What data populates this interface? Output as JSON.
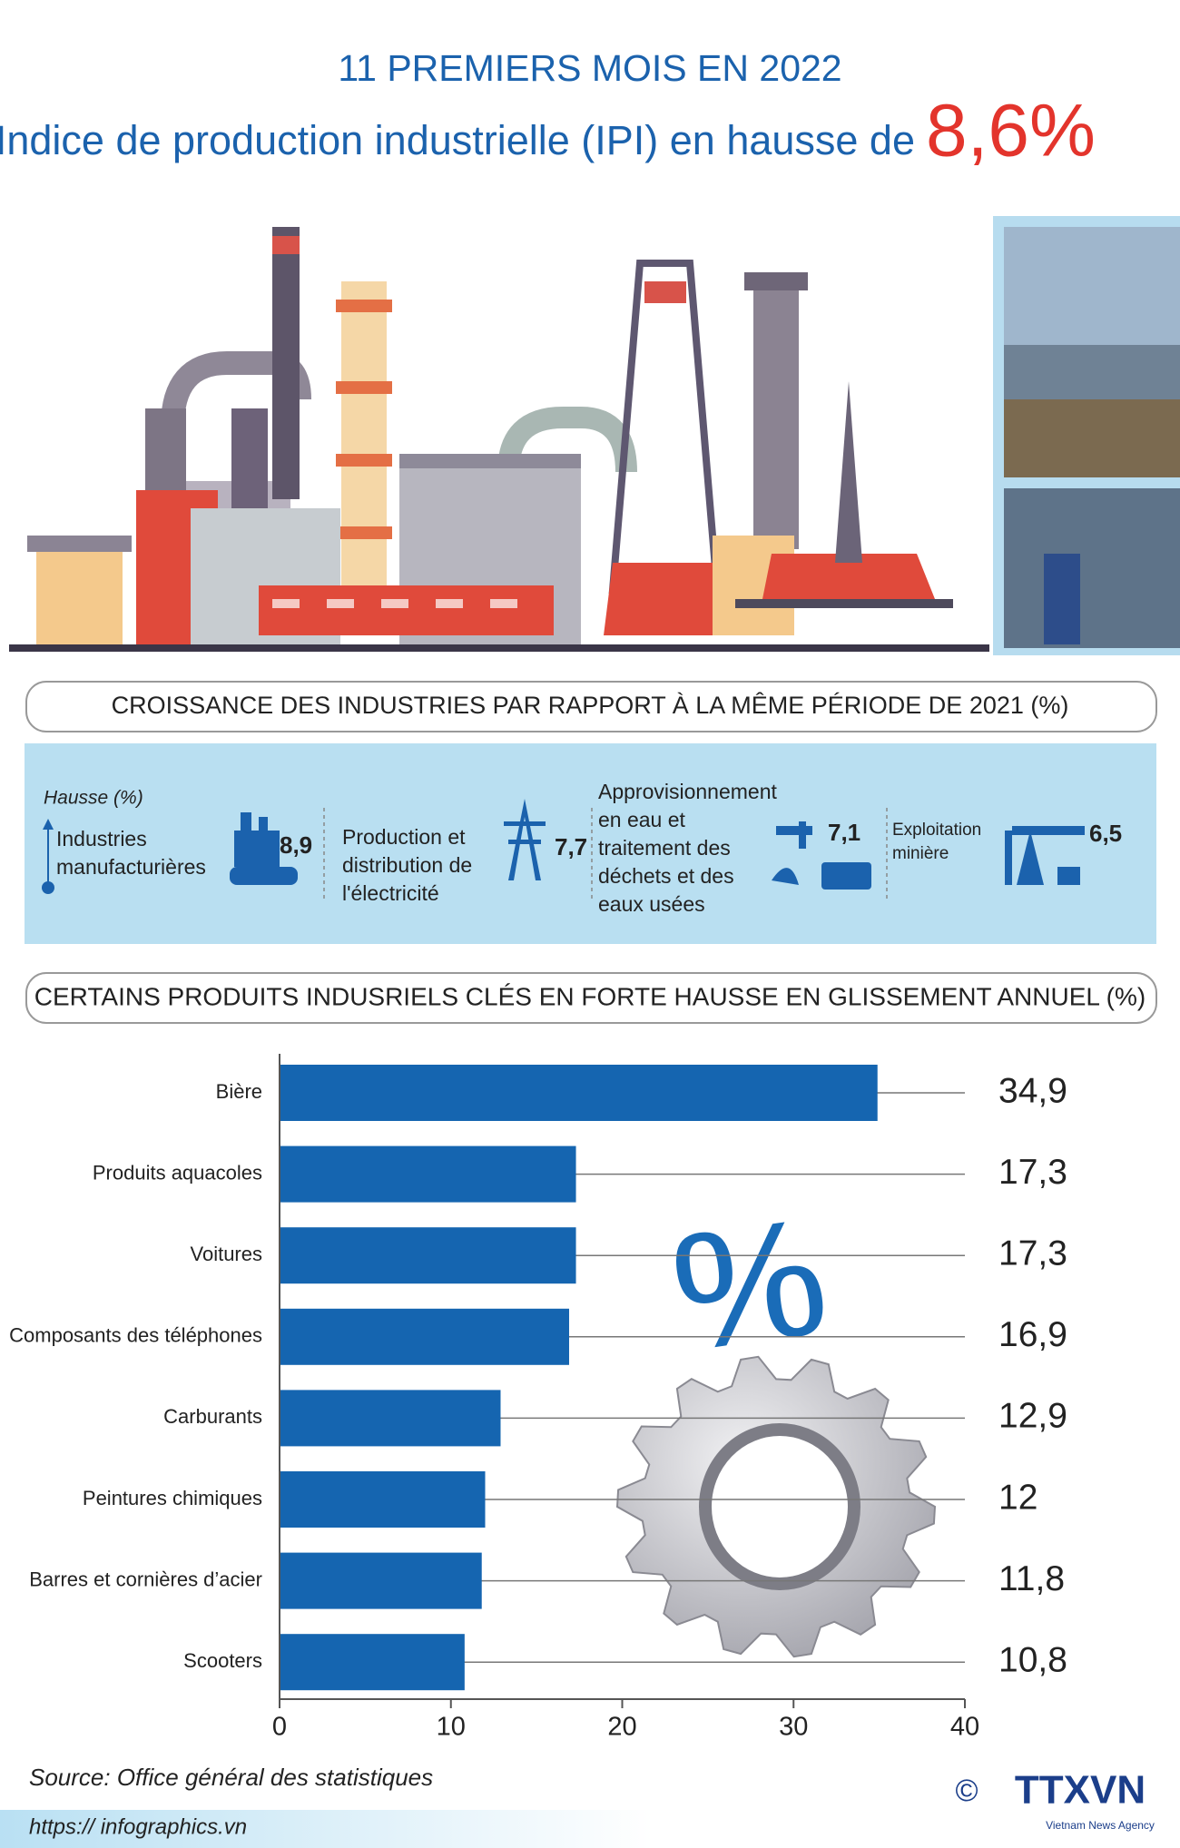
{
  "header": {
    "line1": "11 PREMIERS MOIS EN 2022",
    "line2": "Indice de production industrielle (IPI) en hausse de",
    "highlight": "8,6%"
  },
  "section1": {
    "title": "CROISSANCE DES INDUSTRIES PAR RAPPORT À LA MÊME PÉRIODE DE 2021 (%)",
    "legend": "Hausse (%)",
    "items": [
      {
        "lines": [
          "Industries",
          "manufacturières"
        ],
        "value": "8,9"
      },
      {
        "lines": [
          "Production et",
          "distribution de",
          "l'électricité"
        ],
        "value": "7,7"
      },
      {
        "lines": [
          "Approvisionnement",
          "en eau et",
          "traitement des",
          "déchets et des",
          "eaux usées"
        ],
        "value": "7,1"
      },
      {
        "lines": [
          "Exploitation",
          "minière"
        ],
        "value": "6,5"
      }
    ]
  },
  "chart_data": {
    "type": "bar",
    "orientation": "horizontal",
    "title": "CERTAINS PRODUITS INDUSRIELS CLÉS  EN FORTE HAUSSE EN GLISSEMENT ANNUEL (%)",
    "categories": [
      "Bière",
      "Produits aquacoles",
      "Voitures",
      "Composants des téléphones",
      "Carburants",
      "Peintures chimiques",
      "Barres et cornières d’acier",
      "Scooters"
    ],
    "values": [
      34.9,
      17.3,
      17.3,
      16.9,
      12.9,
      12,
      11.8,
      10.8
    ],
    "value_labels": [
      "34,9",
      "17,3",
      "17,3",
      "16,9",
      "12,9",
      "12",
      "11,8",
      "10,8"
    ],
    "color": "#1565b0",
    "xlim": [
      0,
      40
    ],
    "xticks": [
      0,
      10,
      20,
      30,
      40
    ]
  },
  "illustration": {
    "symbol": "%"
  },
  "footer": {
    "source": "Source: Office général des statistiques",
    "url": "https:// infographics.vn",
    "copyright": "©",
    "logo": "TTXVN",
    "agency": "Vietnam News Agency"
  }
}
